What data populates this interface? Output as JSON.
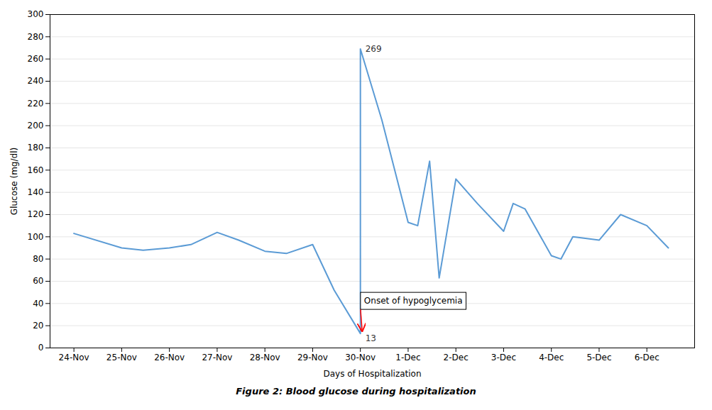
{
  "chart_data": {
    "type": "line",
    "title": "Figure 2: Blood glucose during hospitalization",
    "xlabel": "Days of Hospitalization",
    "ylabel": "Glucose (mg/dl)",
    "x": [
      0,
      1,
      1.45,
      2,
      2.45,
      3,
      3.45,
      4,
      4.45,
      5,
      5.45,
      6,
      6,
      6.45,
      7,
      7.2,
      7.45,
      7.65,
      8,
      8.45,
      9,
      9.2,
      9.45,
      10,
      10.2,
      10.45,
      11,
      11.45,
      12,
      12.45
    ],
    "values": [
      103,
      90,
      88,
      90,
      93,
      104,
      97,
      87,
      85,
      93,
      52,
      13,
      269,
      205,
      113,
      110,
      168,
      63,
      152,
      130,
      105,
      130,
      125,
      83,
      80,
      100,
      97,
      120,
      110,
      90
    ],
    "color": "#5b9bd5",
    "xlim": [
      -0.5,
      13.0
    ],
    "xticks": [
      {
        "value": 0,
        "label": "24-Nov"
      },
      {
        "value": 1,
        "label": "25-Nov"
      },
      {
        "value": 2,
        "label": "26-Nov"
      },
      {
        "value": 3,
        "label": "27-Nov"
      },
      {
        "value": 4,
        "label": "28-Nov"
      },
      {
        "value": 5,
        "label": "29-Nov"
      },
      {
        "value": 6,
        "label": "30-Nov"
      },
      {
        "value": 7,
        "label": "1-Dec"
      },
      {
        "value": 8,
        "label": "2-Dec"
      },
      {
        "value": 9,
        "label": "3-Dec"
      },
      {
        "value": 10,
        "label": "4-Dec"
      },
      {
        "value": 11,
        "label": "5-Dec"
      },
      {
        "value": 12,
        "label": "6-Dec"
      }
    ],
    "ylim": [
      0,
      300
    ],
    "yticks": [
      0,
      20,
      40,
      60,
      80,
      100,
      120,
      140,
      160,
      180,
      200,
      220,
      240,
      260,
      280,
      300
    ],
    "grid": "y",
    "annotations": [
      {
        "text": "269",
        "x": 6,
        "y": 269
      },
      {
        "text": "13",
        "x": 6,
        "y": 13
      },
      {
        "text": "Onset of hypoglycemia",
        "x": 6,
        "y": 13,
        "arrow": true
      }
    ]
  }
}
